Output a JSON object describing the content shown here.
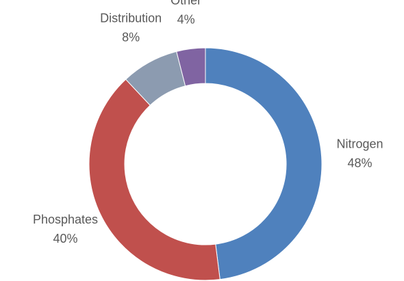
{
  "chart_data": {
    "type": "donut",
    "categories": [
      "Nitrogen",
      "Phosphates",
      "Distribution",
      "Other"
    ],
    "values": [
      48,
      40,
      8,
      4
    ],
    "value_labels": [
      "48%",
      "40%",
      "8%",
      "4%"
    ],
    "colors": [
      "#4f81bd",
      "#c0504d",
      "#8c9bb0",
      "#8064a2"
    ]
  }
}
